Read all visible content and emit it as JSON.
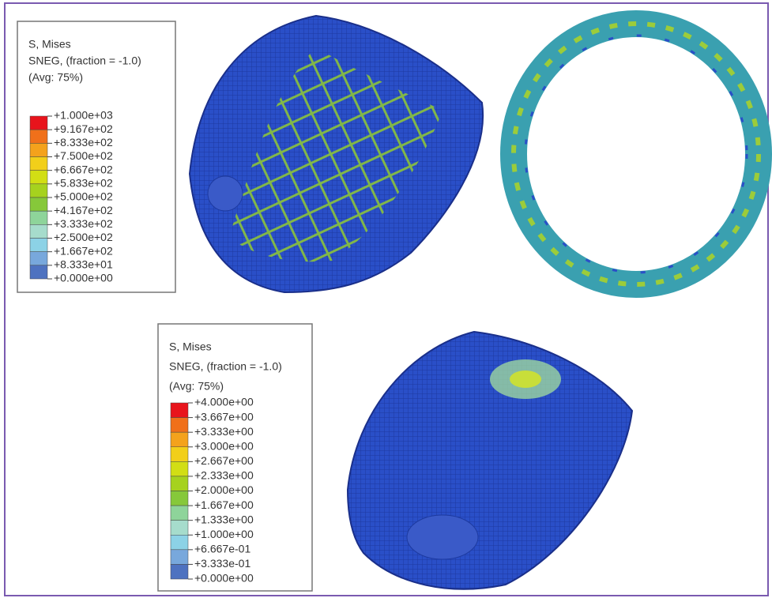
{
  "legends": [
    {
      "title_lines": [
        "S, Mises",
        "SNEG, (fraction = -1.0)",
        "(Avg: 75%)"
      ],
      "labels": [
        "+1.000e+03",
        "+9.167e+02",
        "+8.333e+02",
        "+7.500e+02",
        "+6.667e+02",
        "+5.833e+02",
        "+5.000e+02",
        "+4.167e+02",
        "+3.333e+02",
        "+2.500e+02",
        "+1.667e+02",
        "+8.333e+01",
        "+0.000e+00"
      ],
      "colors": [
        "#e8141c",
        "#f0701a",
        "#f4a21c",
        "#f2cf1a",
        "#d2de14",
        "#a6d21e",
        "#86c83a",
        "#8ed49a",
        "#a6dccc",
        "#8cd2e6",
        "#78a8dc",
        "#4e72c0"
      ]
    },
    {
      "title_lines": [
        "S, Mises",
        "SNEG, (fraction = -1.0)",
        "(Avg: 75%)"
      ],
      "labels": [
        "+4.000e+00",
        "+3.667e+00",
        "+3.333e+00",
        "+3.000e+00",
        "+2.667e+00",
        "+2.333e+00",
        "+2.000e+00",
        "+1.667e+00",
        "+1.333e+00",
        "+1.000e+00",
        "+6.667e-01",
        "+3.333e-01",
        "+0.000e+00"
      ],
      "colors": [
        "#e8141c",
        "#f0701a",
        "#f4a21c",
        "#f2cf1a",
        "#d2de14",
        "#a6d21e",
        "#86c83a",
        "#8ed49a",
        "#a6dccc",
        "#8cd2e6",
        "#78a8dc",
        "#4e72c0"
      ]
    }
  ]
}
